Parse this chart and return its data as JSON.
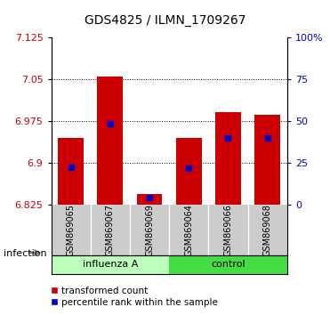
{
  "title": "GDS4825 / ILMN_1709267",
  "samples": [
    "GSM869065",
    "GSM869067",
    "GSM869069",
    "GSM869064",
    "GSM869066",
    "GSM869068"
  ],
  "groups": [
    "influenza A",
    "influenza A",
    "influenza A",
    "control",
    "control",
    "control"
  ],
  "red_bar_tops": [
    6.945,
    7.055,
    6.845,
    6.945,
    6.992,
    6.987
  ],
  "blue_marker_pos": [
    6.893,
    6.97,
    6.838,
    6.891,
    6.945,
    6.945
  ],
  "bar_base": 6.825,
  "ylim": [
    6.825,
    7.125
  ],
  "yticks_left": [
    6.825,
    6.9,
    6.975,
    7.05,
    7.125
  ],
  "yticks_right": [
    0,
    25,
    50,
    75,
    100
  ],
  "flu_color": "#bbffbb",
  "control_color": "#44dd44",
  "gsm_bg_color": "#cccccc",
  "bar_color": "#cc0000",
  "blue_color": "#0000cc",
  "bar_width": 0.65,
  "grid_color": "#000000",
  "tick_label_color_left": "#cc0000",
  "tick_label_color_right": "#0000cc",
  "background_color": "#ffffff",
  "plot_bg_color": "#ffffff",
  "infection_label": "infection",
  "legend_red": "transformed count",
  "legend_blue": "percentile rank within the sample"
}
